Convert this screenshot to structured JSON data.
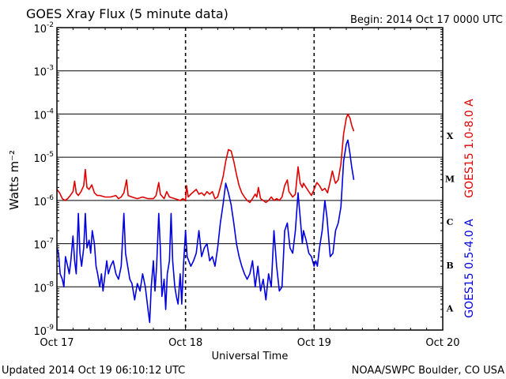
{
  "header": {
    "title": "GOES Xray Flux (5 minute data)",
    "begin": "Begin:  2014 Oct 17 0000 UTC"
  },
  "footer": {
    "updated": "Updated 2014 Oct 19 06:10:12 UTC",
    "credit": "NOAA/SWPC Boulder, CO USA"
  },
  "chart_data": {
    "type": "line",
    "title": "GOES Xray Flux (5 minute data)",
    "xlabel": "Universal Time",
    "ylabel": "Watts m⁻²",
    "yscale": "log",
    "ylim": [
      1e-09,
      0.01
    ],
    "xlim": [
      0,
      72
    ],
    "x_unit": "hours since 2014 Oct 17 0000 UTC",
    "x_ticks": [
      {
        "x": 0,
        "label": "Oct 17"
      },
      {
        "x": 24,
        "label": "Oct 18"
      },
      {
        "x": 48,
        "label": "Oct 19"
      },
      {
        "x": 72,
        "label": "Oct 20"
      }
    ],
    "y_ticks": [
      {
        "exp": -2,
        "base": "10",
        "sup": "-2"
      },
      {
        "exp": -3,
        "base": "10",
        "sup": "-3"
      },
      {
        "exp": -4,
        "base": "10",
        "sup": "-4"
      },
      {
        "exp": -5,
        "base": "10",
        "sup": "-5"
      },
      {
        "exp": -6,
        "base": "10",
        "sup": "-6"
      },
      {
        "exp": -7,
        "base": "10",
        "sup": "-7"
      },
      {
        "exp": -8,
        "base": "10",
        "sup": "-8"
      },
      {
        "exp": -9,
        "base": "10",
        "sup": "-9"
      }
    ],
    "flare_classes": [
      {
        "label": "X",
        "exp": -4
      },
      {
        "label": "M",
        "exp": -5
      },
      {
        "label": "C",
        "exp": -6
      },
      {
        "label": "B",
        "exp": -7
      },
      {
        "label": "A",
        "exp": -8
      }
    ],
    "grid": {
      "horizontal": true,
      "vertical_dashed": true
    },
    "series": [
      {
        "name": "GOES15 1.0-8.0 A",
        "color": "#e00000",
        "points": [
          [
            0,
            1.8e-06
          ],
          [
            0.5,
            1.5e-06
          ],
          [
            1,
            1.1e-06
          ],
          [
            1.5,
            1e-06
          ],
          [
            2,
            1.1e-06
          ],
          [
            2.5,
            1.3e-06
          ],
          [
            3,
            1.6e-06
          ],
          [
            3.3,
            2.8e-06
          ],
          [
            3.6,
            1.5e-06
          ],
          [
            4,
            1.3e-06
          ],
          [
            4.5,
            1.6e-06
          ],
          [
            5,
            2.2e-06
          ],
          [
            5.3,
            5.2e-06
          ],
          [
            5.6,
            2e-06
          ],
          [
            6,
            1.8e-06
          ],
          [
            6.5,
            2.3e-06
          ],
          [
            7,
            1.5e-06
          ],
          [
            7.5,
            1.3e-06
          ],
          [
            8,
            1.3e-06
          ],
          [
            9,
            1.2e-06
          ],
          [
            10,
            1.2e-06
          ],
          [
            11,
            1.3e-06
          ],
          [
            11.5,
            1.1e-06
          ],
          [
            12,
            1.2e-06
          ],
          [
            12.5,
            1.5e-06
          ],
          [
            13,
            3e-06
          ],
          [
            13.3,
            1.3e-06
          ],
          [
            14,
            1.2e-06
          ],
          [
            15,
            1.1e-06
          ],
          [
            16,
            1.2e-06
          ],
          [
            17,
            1.1e-06
          ],
          [
            18,
            1.1e-06
          ],
          [
            18.5,
            1.3e-06
          ],
          [
            19,
            2.6e-06
          ],
          [
            19.3,
            1.4e-06
          ],
          [
            20,
            1.1e-06
          ],
          [
            20.5,
            1.6e-06
          ],
          [
            21,
            1.2e-06
          ],
          [
            22,
            1.1e-06
          ],
          [
            23,
            1e-06
          ],
          [
            23.5,
            1.1e-06
          ],
          [
            24,
            1e-06
          ],
          [
            24.2,
            2.2e-06
          ],
          [
            24.5,
            1.2e-06
          ],
          [
            25,
            1.4e-06
          ],
          [
            26,
            1.8e-06
          ],
          [
            26.5,
            1.4e-06
          ],
          [
            27,
            1.5e-06
          ],
          [
            27.5,
            1.3e-06
          ],
          [
            28,
            1.6e-06
          ],
          [
            28.5,
            1.4e-06
          ],
          [
            29,
            1.6e-06
          ],
          [
            29.5,
            1.1e-06
          ],
          [
            30,
            1.2e-06
          ],
          [
            30.5,
            2e-06
          ],
          [
            31,
            3.5e-06
          ],
          [
            31.5,
            8e-06
          ],
          [
            32,
            1.5e-05
          ],
          [
            32.5,
            1.4e-05
          ],
          [
            33,
            8e-06
          ],
          [
            33.5,
            4e-06
          ],
          [
            34,
            2.2e-06
          ],
          [
            34.5,
            1.5e-06
          ],
          [
            35,
            1.2e-06
          ],
          [
            35.5,
            1e-06
          ],
          [
            36,
            9e-07
          ],
          [
            36.5,
            1.1e-06
          ],
          [
            37,
            1.4e-06
          ],
          [
            37.3,
            1.2e-06
          ],
          [
            37.6,
            2e-06
          ],
          [
            38,
            1.1e-06
          ],
          [
            38.5,
            1e-06
          ],
          [
            39,
            9e-07
          ],
          [
            39.5,
            1e-06
          ],
          [
            40,
            1.2e-06
          ],
          [
            40.5,
            1e-06
          ],
          [
            41,
            1.1e-06
          ],
          [
            41.5,
            1e-06
          ],
          [
            42,
            1.2e-06
          ],
          [
            42.5,
            2.2e-06
          ],
          [
            43,
            3e-06
          ],
          [
            43.3,
            1.6e-06
          ],
          [
            44,
            1.2e-06
          ],
          [
            44.5,
            1.4e-06
          ],
          [
            45,
            6e-06
          ],
          [
            45.4,
            2.5e-06
          ],
          [
            45.8,
            2e-06
          ],
          [
            46,
            2.5e-06
          ],
          [
            46.5,
            2e-06
          ],
          [
            47,
            1.6e-06
          ],
          [
            47.5,
            1.3e-06
          ],
          [
            48,
            1.8e-06
          ],
          [
            48.5,
            2.6e-06
          ],
          [
            49,
            2.2e-06
          ],
          [
            49.5,
            1.7e-06
          ],
          [
            50,
            1.9e-06
          ],
          [
            50.5,
            1.5e-06
          ],
          [
            51,
            2.8e-06
          ],
          [
            51.4,
            4.8e-06
          ],
          [
            51.8,
            3e-06
          ],
          [
            52,
            2.5e-06
          ],
          [
            52.5,
            3e-06
          ],
          [
            53,
            7e-06
          ],
          [
            53.5,
            3.5e-05
          ],
          [
            54,
            8e-05
          ],
          [
            54.3,
            0.0001
          ],
          [
            54.7,
            8e-05
          ],
          [
            55,
            5.5e-05
          ],
          [
            55.4,
            4e-05
          ]
        ]
      },
      {
        "name": "GOES15 0.5-4.0 A",
        "color": "#0000e0",
        "points": [
          [
            0,
            8e-08
          ],
          [
            0.3,
            6e-08
          ],
          [
            0.6,
            2e-08
          ],
          [
            1,
            1.5e-08
          ],
          [
            1.3,
            1e-08
          ],
          [
            1.6,
            5e-08
          ],
          [
            2,
            3e-08
          ],
          [
            2.3,
            2e-08
          ],
          [
            2.6,
            4e-08
          ],
          [
            3,
            1.5e-07
          ],
          [
            3.3,
            4e-08
          ],
          [
            3.6,
            2e-08
          ],
          [
            4,
            5e-07
          ],
          [
            4.3,
            6e-08
          ],
          [
            4.6,
            3e-08
          ],
          [
            5,
            8e-08
          ],
          [
            5.3,
            5e-07
          ],
          [
            5.6,
            8e-08
          ],
          [
            6,
            1.2e-07
          ],
          [
            6.3,
            6e-08
          ],
          [
            6.6,
            2e-07
          ],
          [
            7,
            1e-07
          ],
          [
            7.3,
            3e-08
          ],
          [
            7.6,
            2e-08
          ],
          [
            8,
            1e-08
          ],
          [
            8.3,
            2e-08
          ],
          [
            8.6,
            8e-09
          ],
          [
            9,
            2e-08
          ],
          [
            9.3,
            4e-08
          ],
          [
            9.6,
            2e-08
          ],
          [
            10,
            3e-08
          ],
          [
            10.5,
            4e-08
          ],
          [
            11,
            2e-08
          ],
          [
            11.5,
            1.5e-08
          ],
          [
            12,
            3e-08
          ],
          [
            12.5,
            5e-07
          ],
          [
            12.8,
            6e-08
          ],
          [
            13.2,
            3e-08
          ],
          [
            13.6,
            1.5e-08
          ],
          [
            14,
            1.2e-08
          ],
          [
            14.5,
            5e-09
          ],
          [
            15,
            1.2e-08
          ],
          [
            15.5,
            8e-09
          ],
          [
            16,
            2e-08
          ],
          [
            16.5,
            1e-08
          ],
          [
            17,
            3e-09
          ],
          [
            17.3,
            1.5e-09
          ],
          [
            17.6,
            1e-08
          ],
          [
            18,
            4e-08
          ],
          [
            18.3,
            8e-09
          ],
          [
            18.6,
            3e-08
          ],
          [
            19,
            5e-07
          ],
          [
            19.3,
            8e-08
          ],
          [
            19.6,
            6e-09
          ],
          [
            20,
            1.5e-08
          ],
          [
            20.3,
            3e-09
          ],
          [
            20.6,
            2e-08
          ],
          [
            21,
            4e-08
          ],
          [
            21.3,
            5e-07
          ],
          [
            21.6,
            4e-08
          ],
          [
            22,
            1e-08
          ],
          [
            22.3,
            6e-09
          ],
          [
            22.6,
            4e-09
          ],
          [
            23,
            2e-08
          ],
          [
            23.3,
            4e-09
          ],
          [
            23.6,
            3e-08
          ],
          [
            24,
            2e-07
          ],
          [
            24.3,
            5e-08
          ],
          [
            24.6,
            4e-08
          ],
          [
            25,
            3e-08
          ],
          [
            25.5,
            4e-08
          ],
          [
            26,
            6e-08
          ],
          [
            26.5,
            2e-07
          ],
          [
            27,
            5e-08
          ],
          [
            27.5,
            8e-08
          ],
          [
            28,
            1e-07
          ],
          [
            28.5,
            4e-08
          ],
          [
            29,
            5e-08
          ],
          [
            29.5,
            3e-08
          ],
          [
            30,
            8e-08
          ],
          [
            30.5,
            3e-07
          ],
          [
            31,
            8e-07
          ],
          [
            31.5,
            2.5e-06
          ],
          [
            32,
            1.5e-06
          ],
          [
            32.5,
            8e-07
          ],
          [
            33,
            3e-07
          ],
          [
            33.5,
            1e-07
          ],
          [
            34,
            5e-08
          ],
          [
            34.5,
            3e-08
          ],
          [
            35,
            2e-08
          ],
          [
            35.5,
            1.5e-08
          ],
          [
            36,
            2e-08
          ],
          [
            36.5,
            4e-08
          ],
          [
            37,
            1e-08
          ],
          [
            37.5,
            3e-08
          ],
          [
            38,
            8e-09
          ],
          [
            38.5,
            1.5e-08
          ],
          [
            39,
            5e-09
          ],
          [
            39.5,
            2e-08
          ],
          [
            40,
            1e-08
          ],
          [
            40.5,
            2e-07
          ],
          [
            41,
            3e-08
          ],
          [
            41.5,
            8e-09
          ],
          [
            42,
            1e-08
          ],
          [
            42.5,
            2e-07
          ],
          [
            43,
            3e-07
          ],
          [
            43.5,
            8e-08
          ],
          [
            44,
            6e-08
          ],
          [
            44.5,
            2e-07
          ],
          [
            45,
            1.5e-06
          ],
          [
            45.4,
            4e-07
          ],
          [
            45.8,
            1e-07
          ],
          [
            46,
            2e-07
          ],
          [
            46.5,
            1.2e-07
          ],
          [
            47,
            6e-08
          ],
          [
            47.5,
            5e-08
          ],
          [
            48,
            3e-08
          ],
          [
            48.3,
            4e-08
          ],
          [
            48.6,
            3e-08
          ],
          [
            49,
            8e-08
          ],
          [
            49.5,
            2e-07
          ],
          [
            50,
            1e-06
          ],
          [
            50.4,
            4e-07
          ],
          [
            50.8,
            1e-07
          ],
          [
            51,
            5e-08
          ],
          [
            51.5,
            6e-08
          ],
          [
            52,
            2e-07
          ],
          [
            52.5,
            3e-07
          ],
          [
            53,
            7e-07
          ],
          [
            53.5,
            8e-06
          ],
          [
            54,
            2e-05
          ],
          [
            54.3,
            2.5e-05
          ],
          [
            54.7,
            1.2e-05
          ],
          [
            55,
            6e-06
          ],
          [
            55.4,
            3e-06
          ]
        ]
      }
    ]
  }
}
